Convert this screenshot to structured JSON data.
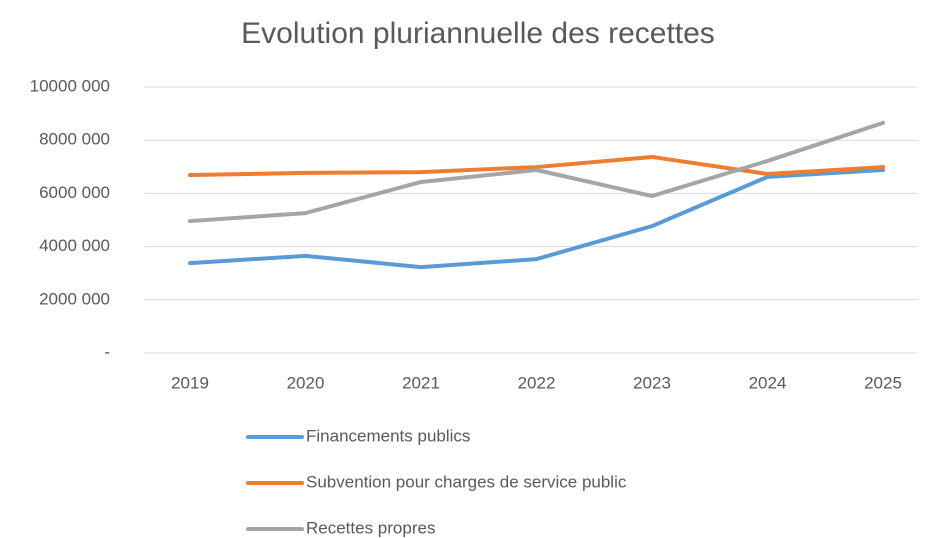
{
  "chart_data": {
    "type": "line",
    "title": "Evolution pluriannuelle des recettes",
    "categories": [
      "2019",
      "2020",
      "2021",
      "2022",
      "2023",
      "2024",
      "2025"
    ],
    "series": [
      {
        "name": "Financements publics",
        "color": "#5b9bd5",
        "values": [
          3380000,
          3650000,
          3230000,
          3530000,
          4770000,
          6620000,
          6880000
        ]
      },
      {
        "name": "Subvention pour charges de service public",
        "color": "#ed7d31",
        "values": [
          6690000,
          6770000,
          6800000,
          6990000,
          7370000,
          6730000,
          6990000
        ]
      },
      {
        "name": "Recettes propres",
        "color": "#a5a5a5",
        "values": [
          4960000,
          5260000,
          6430000,
          6880000,
          5900000,
          7220000,
          8650000
        ]
      }
    ],
    "ylim": [
      0,
      10000000
    ],
    "yticks": [
      {
        "value": 0,
        "label": "-"
      },
      {
        "value": 2000000,
        "label": "2000 000"
      },
      {
        "value": 4000000,
        "label": "4000 000"
      },
      {
        "value": 6000000,
        "label": "6000 000"
      },
      {
        "value": 8000000,
        "label": "8000 000"
      },
      {
        "value": 10000000,
        "label": "10000 000"
      }
    ],
    "grid": true,
    "legend": "bottom"
  }
}
